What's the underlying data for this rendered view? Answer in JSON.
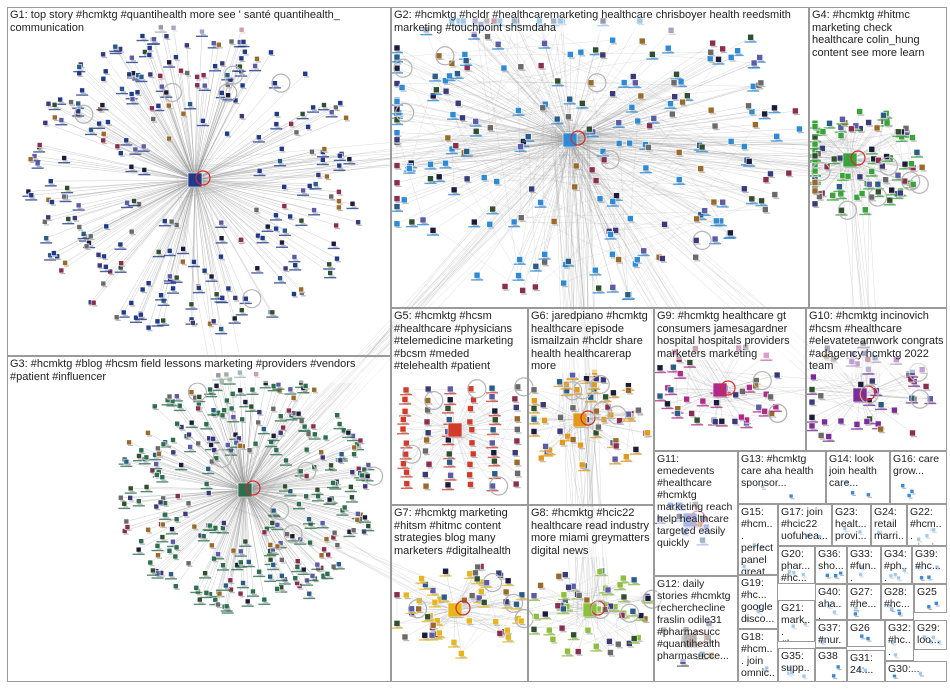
{
  "groups": [
    {
      "id": "G1",
      "label": "G1: top story #hcmktg #quantihealth more see ' santé quantihealth_ communication",
      "color": "#1f3a8a"
    },
    {
      "id": "G2",
      "label": "G2: #hcmktg #hcldr #healthcaremarketing healthcare chrisboyer health reedsmith marketing #touchpoint shsmdaha",
      "color": "#2c8ad6"
    },
    {
      "id": "G3",
      "label": "G3: #hcmktg #blog #hcsm field lessons marketing #providers #vendors #patient #influencer",
      "color": "#2d6e4e"
    },
    {
      "id": "G4",
      "label": "G4: #hcmktg #hitmc marketing check healthcare colin_hung content see more learn",
      "color": "#37a33a"
    },
    {
      "id": "G5",
      "label": "G5: #hcmktg #hcsm #healthcare #physicians #telemedicine marketing #bcsm #meded #telehealth #patient",
      "color": "#d23a2a"
    },
    {
      "id": "G6",
      "label": "G6: jaredpiano #hcmktg healthcare episode ismailzain #hcldr share health healthcarerap more",
      "color": "#e39a1c"
    },
    {
      "id": "G7",
      "label": "G7: #hcmktg marketing #hitsm #hitmc content strategies blog many marketers #digitalhealth",
      "color": "#e7b61c"
    },
    {
      "id": "G8",
      "label": "G8: #hcmktg #hcic22 healthcare read industry more miami greymatters digital news",
      "color": "#8cbf3a"
    },
    {
      "id": "G9",
      "label": "G9: #hcmktg healthcare gt consumers jamesagardner hospital hospitals providers marketers marketing",
      "color": "#b02a8a"
    },
    {
      "id": "G10",
      "label": "G10: #hcmktg incinovich #hcsm #healthcare #elevateteamwork congrats #adagency hcmktg 2022 team",
      "color": "#7a2c9a"
    },
    {
      "id": "G11",
      "label": "G11: emedevents #healthcare #hcmktg marketing reach help healthcare targeted easily quickly",
      "color": "#3a5fd6"
    },
    {
      "id": "G12",
      "label": "G12: daily stories #hcmktg recherchecline fraslin odile31 #pharmasucc #quantihealth pharmasucce...",
      "color": "#5a5a5a"
    },
    {
      "id": "G13",
      "label": "G13: #hcmktg care aha health sponsor...",
      "color": "#3a8ad6"
    },
    {
      "id": "G14",
      "label": "G14: look join health care...",
      "color": "#3a8ad6"
    },
    {
      "id": "G15",
      "label": "G15: #hcm... perfect panel great...",
      "color": "#3a8ad6"
    },
    {
      "id": "G16",
      "label": "G16: care grow...",
      "color": "#3a8ad6"
    },
    {
      "id": "G17",
      "label": "G17: join #hcic22 uofuhea...",
      "color": "#3a8ad6"
    },
    {
      "id": "G18",
      "label": "G18: #hcm... join omnic...",
      "color": "#3a8ad6"
    },
    {
      "id": "G19",
      "label": "G19: #hc... google disco...",
      "color": "#3a8ad6"
    },
    {
      "id": "G20",
      "label": "G20: phar... #hc...",
      "color": "#3a8ad6"
    },
    {
      "id": "G21",
      "label": "G21: mark... #hc...",
      "color": "#3a8ad6"
    },
    {
      "id": "G22",
      "label": "G22: #hcm... winni...",
      "color": "#3a8ad6"
    },
    {
      "id": "G23",
      "label": "G23: healt... provi...",
      "color": "#3a8ad6"
    },
    {
      "id": "G24",
      "label": "G24: retail marri...",
      "color": "#3a8ad6"
    },
    {
      "id": "G25",
      "label": "G25",
      "color": "#3a8ad6"
    },
    {
      "id": "G26",
      "label": "G26",
      "color": "#3a8ad6"
    },
    {
      "id": "G27",
      "label": "G27: #he...",
      "color": "#3a8ad6"
    },
    {
      "id": "G28",
      "label": "G28: #hc...",
      "color": "#3a8ad6"
    },
    {
      "id": "G29",
      "label": "G29: loo...",
      "color": "#3a8ad6"
    },
    {
      "id": "G30",
      "label": "G30:...",
      "color": "#3a8ad6"
    },
    {
      "id": "G31",
      "label": "G31: 24:...",
      "color": "#3a8ad6"
    },
    {
      "id": "G32",
      "label": "G32: #hc...",
      "color": "#3a8ad6"
    },
    {
      "id": "G33",
      "label": "G33: #fun...",
      "color": "#3a8ad6"
    },
    {
      "id": "G34",
      "label": "G34: #ph...",
      "color": "#3a8ad6"
    },
    {
      "id": "G35",
      "label": "G35: supp...",
      "color": "#3a8ad6"
    },
    {
      "id": "G36",
      "label": "G36: sho...",
      "color": "#3a8ad6"
    },
    {
      "id": "G37",
      "label": "G37: #nur...",
      "color": "#3a8ad6"
    },
    {
      "id": "G38",
      "label": "G38",
      "color": "#3a8ad6"
    },
    {
      "id": "G39",
      "label": "G39: #hc...",
      "color": "#3a8ad6"
    },
    {
      "id": "G40",
      "label": "G40: aha...",
      "color": "#3a8ad6"
    }
  ],
  "colors": {
    "edge": "#8f8f8f",
    "panel_border": "#9a9a9a",
    "self_loop": "#d42a2a"
  }
}
